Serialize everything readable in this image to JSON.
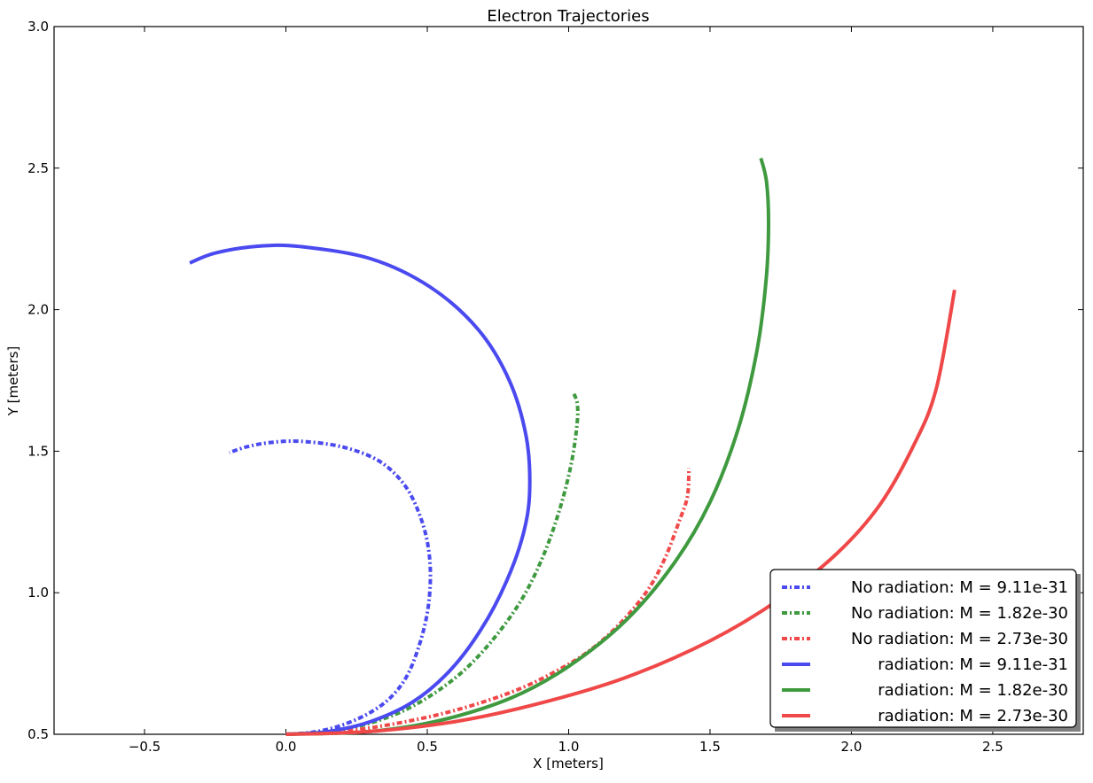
{
  "chart_data": {
    "type": "line",
    "title": "Electron Trajectories",
    "xlabel": "X [meters]",
    "ylabel": "Y [meters]",
    "xlim": [
      -0.82,
      2.82
    ],
    "ylim": [
      0.5,
      3.0
    ],
    "xticks": [
      -0.5,
      0.0,
      0.5,
      1.0,
      1.5,
      2.0,
      2.5
    ],
    "xtick_labels": [
      "−0.5",
      "0.0",
      "0.5",
      "1.0",
      "1.5",
      "2.0",
      "2.5"
    ],
    "yticks": [
      0.5,
      1.0,
      1.5,
      2.0,
      2.5,
      3.0
    ],
    "ytick_labels": [
      "0.5",
      "1.0",
      "1.5",
      "2.0",
      "2.5",
      "3.0"
    ],
    "grid": false,
    "legend_position": "bottom-right",
    "series": [
      {
        "name": "No radiation: M = 9.11e-31",
        "color": "#4a4af0",
        "style": "dashdot",
        "points": [
          [
            0.0,
            0.5
          ],
          [
            0.1,
            0.508
          ],
          [
            0.2,
            0.533
          ],
          [
            0.3,
            0.578
          ],
          [
            0.38,
            0.64
          ],
          [
            0.44,
            0.73
          ],
          [
            0.49,
            0.88
          ],
          [
            0.51,
            1.02
          ],
          [
            0.505,
            1.15
          ],
          [
            0.475,
            1.27
          ],
          [
            0.42,
            1.38
          ],
          [
            0.33,
            1.465
          ],
          [
            0.2,
            1.515
          ],
          [
            0.05,
            1.535
          ],
          [
            -0.06,
            1.53
          ],
          [
            -0.14,
            1.515
          ],
          [
            -0.2,
            1.495
          ]
        ]
      },
      {
        "name": "No radiation: M = 1.82e-30",
        "color": "#3f9a3f",
        "style": "dashdot",
        "points": [
          [
            0.0,
            0.5
          ],
          [
            0.15,
            0.51
          ],
          [
            0.3,
            0.54
          ],
          [
            0.45,
            0.6
          ],
          [
            0.6,
            0.7
          ],
          [
            0.72,
            0.82
          ],
          [
            0.83,
            0.97
          ],
          [
            0.91,
            1.13
          ],
          [
            0.97,
            1.3
          ],
          [
            1.01,
            1.46
          ],
          [
            1.03,
            1.6
          ],
          [
            1.03,
            1.67
          ],
          [
            1.015,
            1.71
          ]
        ]
      },
      {
        "name": "No radiation: M = 2.73e-30",
        "color": "#f04848",
        "style": "dashdot",
        "points": [
          [
            0.0,
            0.5
          ],
          [
            0.2,
            0.51
          ],
          [
            0.4,
            0.54
          ],
          [
            0.6,
            0.585
          ],
          [
            0.8,
            0.65
          ],
          [
            0.95,
            0.72
          ],
          [
            1.08,
            0.8
          ],
          [
            1.19,
            0.9
          ],
          [
            1.28,
            1.01
          ],
          [
            1.34,
            1.12
          ],
          [
            1.39,
            1.25
          ],
          [
            1.42,
            1.34
          ],
          [
            1.425,
            1.44
          ]
        ]
      },
      {
        "name": "radiation: M = 9.11e-31",
        "color": "#4a4af0",
        "style": "solid",
        "points": [
          [
            0.0,
            0.5
          ],
          [
            0.15,
            0.51
          ],
          [
            0.3,
            0.545
          ],
          [
            0.45,
            0.615
          ],
          [
            0.58,
            0.725
          ],
          [
            0.69,
            0.87
          ],
          [
            0.78,
            1.04
          ],
          [
            0.84,
            1.21
          ],
          [
            0.862,
            1.36
          ],
          [
            0.85,
            1.55
          ],
          [
            0.79,
            1.75
          ],
          [
            0.68,
            1.93
          ],
          [
            0.51,
            2.08
          ],
          [
            0.3,
            2.18
          ],
          [
            0.05,
            2.223
          ],
          [
            -0.1,
            2.224
          ],
          [
            -0.25,
            2.2
          ],
          [
            -0.34,
            2.165
          ]
        ]
      },
      {
        "name": "radiation: M = 1.82e-30",
        "color": "#3f9a3f",
        "style": "solid",
        "points": [
          [
            0.0,
            0.5
          ],
          [
            0.3,
            0.51
          ],
          [
            0.55,
            0.55
          ],
          [
            0.8,
            0.63
          ],
          [
            1.0,
            0.74
          ],
          [
            1.2,
            0.9
          ],
          [
            1.37,
            1.1
          ],
          [
            1.5,
            1.32
          ],
          [
            1.6,
            1.58
          ],
          [
            1.665,
            1.85
          ],
          [
            1.698,
            2.1
          ],
          [
            1.707,
            2.3
          ],
          [
            1.7,
            2.45
          ],
          [
            1.68,
            2.535
          ]
        ]
      },
      {
        "name": "radiation: M = 2.73e-30",
        "color": "#f04848",
        "style": "solid",
        "points": [
          [
            0.0,
            0.5
          ],
          [
            0.3,
            0.51
          ],
          [
            0.6,
            0.545
          ],
          [
            0.9,
            0.61
          ],
          [
            1.2,
            0.7
          ],
          [
            1.5,
            0.83
          ],
          [
            1.75,
            0.98
          ],
          [
            1.95,
            1.14
          ],
          [
            2.1,
            1.31
          ],
          [
            2.22,
            1.52
          ],
          [
            2.3,
            1.72
          ],
          [
            2.365,
            2.07
          ]
        ]
      }
    ],
    "legend_entries": [
      "No radiation: M = 9.11e-31",
      "No radiation: M = 1.82e-30",
      "No radiation: M = 2.73e-30",
      "radiation: M = 9.11e-31",
      "radiation: M = 1.82e-30",
      "radiation: M = 2.73e-30"
    ]
  }
}
